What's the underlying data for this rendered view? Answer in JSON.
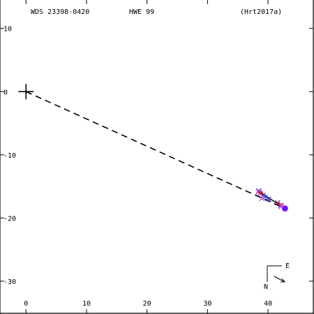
{
  "header": {
    "left": "WDS 23398-0420",
    "middle": "HWE  99",
    "right": "(Hrt2017a)"
  },
  "compass": {
    "east_label": "E",
    "north_label": "N"
  },
  "colors": {
    "axes": "#000000",
    "measurement_blue": "#3344dd",
    "measurement_red": "#ff0000",
    "measurement_magenta": "#cc33cc",
    "final_point": "#3a2bff",
    "final_ring": "#ff00ff",
    "primary_marker": "#000000"
  },
  "chart_data": {
    "type": "scatter",
    "title": "",
    "xlabel": "",
    "ylabel": "",
    "xlim": [
      -4.3,
      47.6
    ],
    "ylim": [
      -35.2,
      14.5
    ],
    "x_ticks": [
      0,
      10,
      20,
      30,
      40
    ],
    "x_tick_labels": [
      "0",
      "10",
      "20",
      "30",
      "40"
    ],
    "y_ticks": [
      10,
      0,
      -10,
      -20,
      -30
    ],
    "y_tick_labels": [
      "10",
      "0",
      "-10",
      "-20",
      "-30"
    ],
    "grid": false,
    "primary": {
      "x": 0,
      "y": 0
    },
    "line_to_latest": {
      "x": [
        0,
        42.8
      ],
      "y": [
        0,
        -18.5
      ],
      "style": "dashed"
    },
    "orbit_segment": {
      "x": [
        38.5,
        42.8
      ],
      "y": [
        -15.8,
        -18.5
      ]
    },
    "series": [
      {
        "marker": "x",
        "color": "#3344dd",
        "x": [
          38.5,
          38.7,
          39.2,
          39.5,
          40.1,
          41.6,
          42.1
        ],
        "y": [
          -15.7,
          -16.1,
          -16.4,
          -16.7,
          -17.0,
          -17.6,
          -18.0
        ]
      },
      {
        "marker": "x",
        "color": "#cc33cc",
        "x": [
          38.4,
          39.0,
          42.2
        ],
        "y": [
          -15.9,
          -16.9,
          -18.2
        ]
      },
      {
        "marker": "+",
        "color": "#ff0000",
        "x": [
          38.8,
          41.8
        ],
        "y": [
          -16.0,
          -17.7
        ]
      }
    ],
    "latest_point": {
      "x": 42.8,
      "y": -18.5
    }
  }
}
